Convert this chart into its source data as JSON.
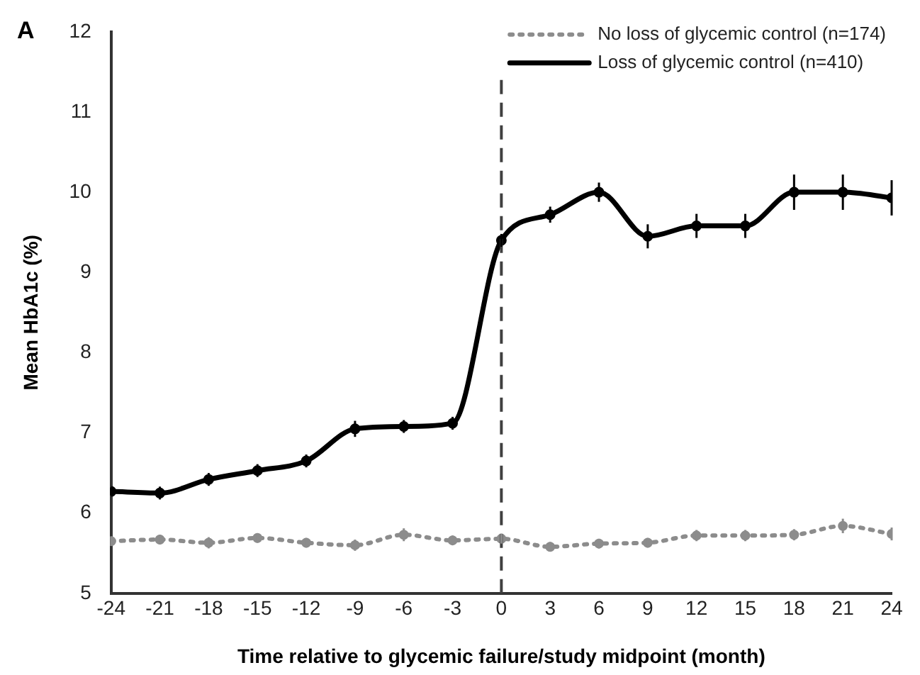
{
  "chart_data": {
    "type": "line",
    "xlabel": "Time relative to glycemic failure/study midpoint (month)",
    "ylabel": "Mean HbA1c (%)",
    "annotations": [
      "A"
    ],
    "x": [
      -24,
      -21,
      -18,
      -15,
      -12,
      -9,
      -6,
      -3,
      0,
      3,
      6,
      9,
      12,
      15,
      18,
      21,
      24
    ],
    "series": [
      {
        "name": "No loss of glycemic control (n=174)",
        "color": "#8c8c8c",
        "line_style": "dotted",
        "values": [
          5.65,
          5.67,
          5.63,
          5.69,
          5.63,
          5.6,
          5.73,
          5.66,
          5.68,
          5.58,
          5.62,
          5.63,
          5.72,
          5.72,
          5.73,
          5.84,
          5.74
        ],
        "errors": [
          0.06,
          0.06,
          0.07,
          0.06,
          0.06,
          0.07,
          0.08,
          0.06,
          0.06,
          0.06,
          0.06,
          0.06,
          0.07,
          0.07,
          0.07,
          0.09,
          0.08
        ]
      },
      {
        "name": "Loss of glycemic control (n=410)",
        "color": "#000000",
        "line_style": "solid",
        "values": [
          6.27,
          6.25,
          6.42,
          6.53,
          6.65,
          7.05,
          7.08,
          7.12,
          9.4,
          9.72,
          10.0,
          9.45,
          9.58,
          9.58,
          10.0,
          10.0,
          9.93
        ],
        "errors": [
          0.05,
          0.08,
          0.08,
          0.08,
          0.08,
          0.1,
          0.08,
          0.08,
          0.08,
          0.1,
          0.12,
          0.15,
          0.15,
          0.15,
          0.22,
          0.22,
          0.22
        ]
      }
    ],
    "ref_lines": [
      {
        "axis": "x",
        "value": 0,
        "color": "#404040",
        "line_style": "dashed"
      }
    ],
    "xlim": [
      -24,
      24
    ],
    "xticks": [
      -24,
      -21,
      -18,
      -15,
      -12,
      -9,
      -6,
      -3,
      0,
      3,
      6,
      9,
      12,
      15,
      18,
      21,
      24
    ],
    "ylim": [
      5,
      12
    ],
    "yticks": [
      5,
      6,
      7,
      8,
      9,
      10,
      11,
      12
    ],
    "grid": false,
    "legend": "top right",
    "marker": "circle"
  }
}
